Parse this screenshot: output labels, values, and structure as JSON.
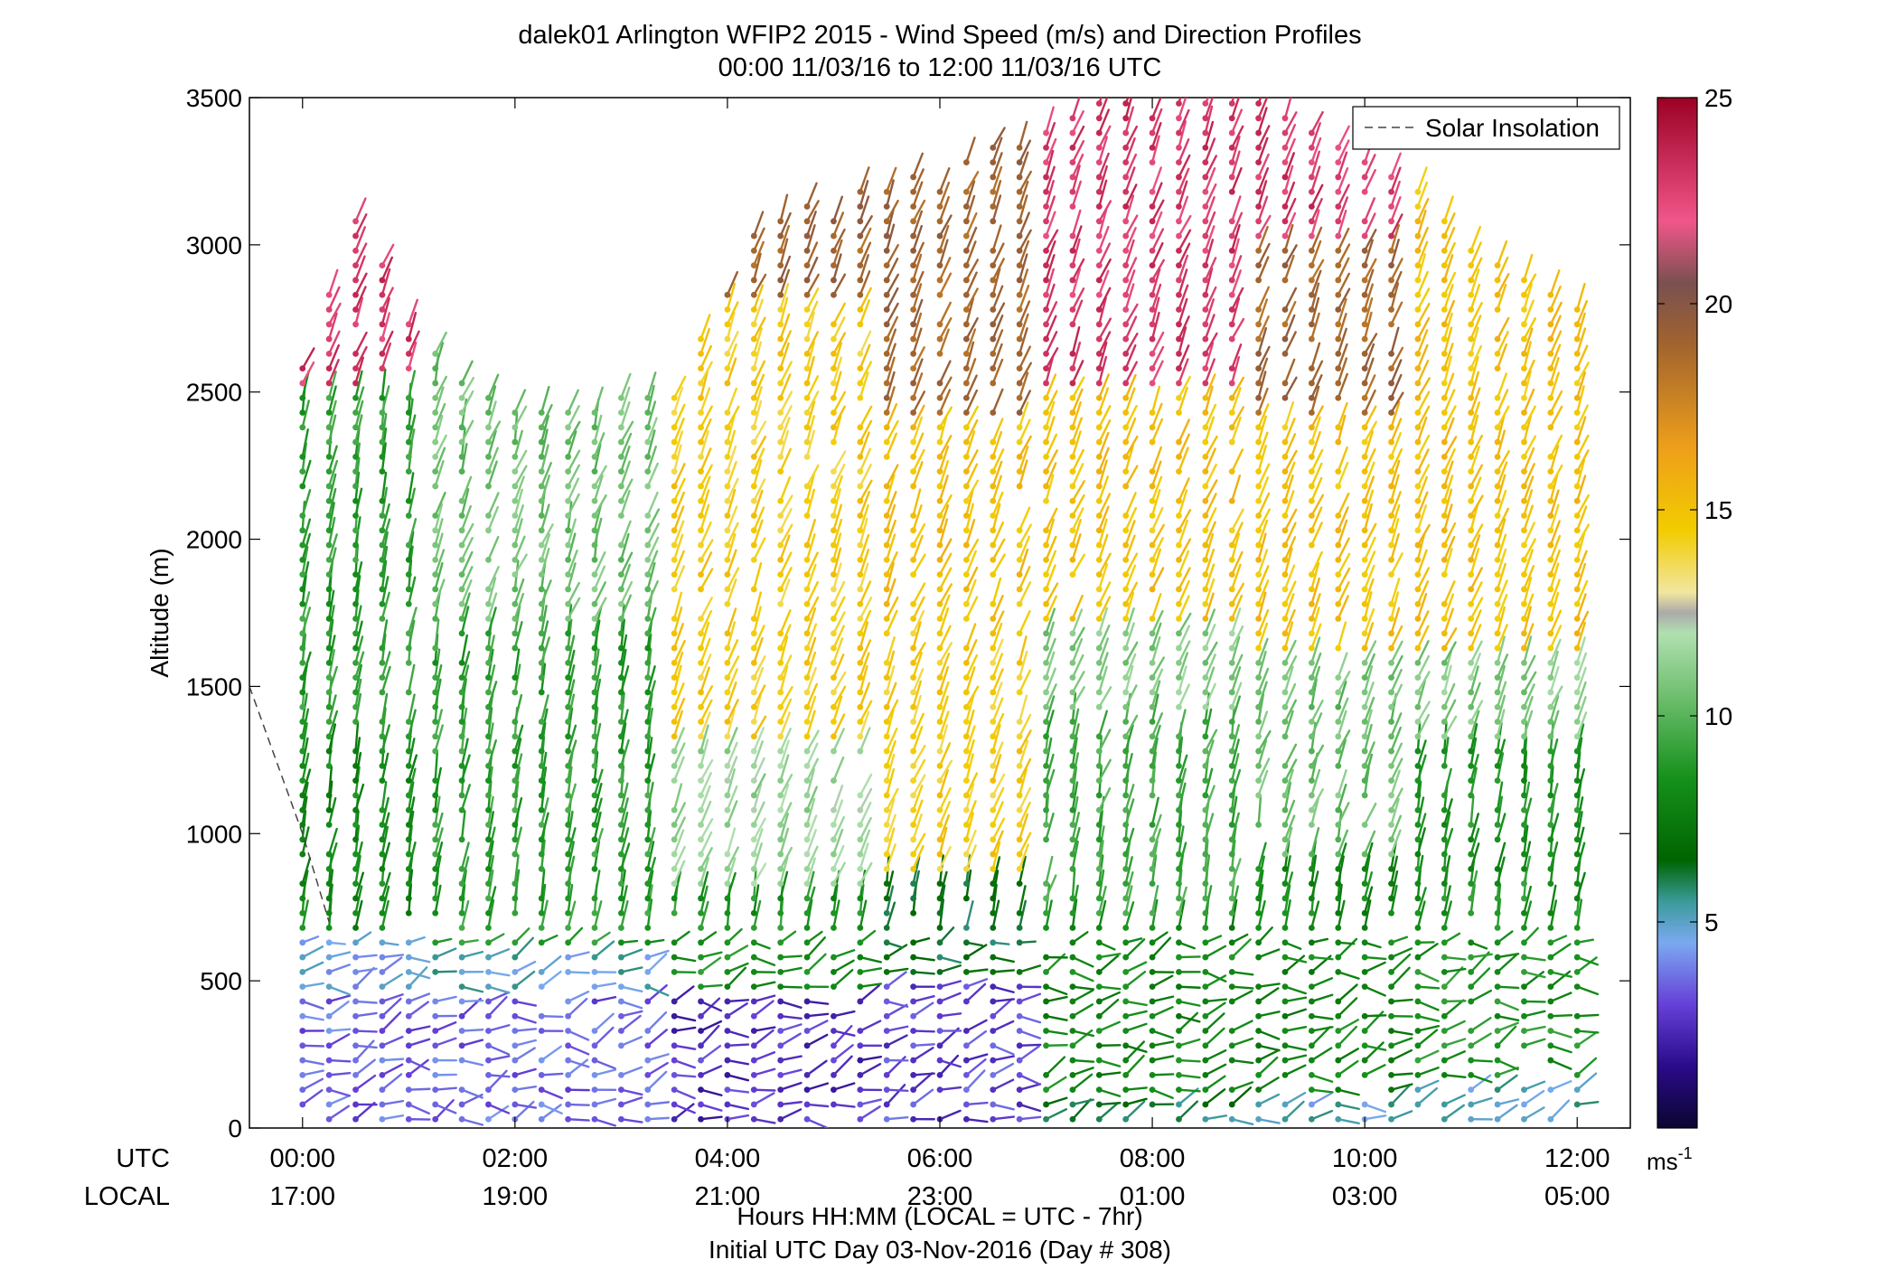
{
  "chart_data": {
    "type": "wind_barb_profile",
    "title": "dalek01 Arlington WFIP2 2015 - Wind Speed (m/s) and Direction Profiles",
    "subtitle": "00:00 11/03/16 to 12:00 11/03/16  UTC",
    "ylabel": "Altitude (m)",
    "xlabel": "Hours HH:MM  (LOCAL = UTC - 7hr)",
    "xlabel2": "Initial UTC Day 03-Nov-2016 (Day # 308)",
    "row_label_utc": "UTC",
    "row_label_local": "LOCAL",
    "ylim": [
      0,
      3500
    ],
    "xlim_hours": [
      -0.5,
      12.5
    ],
    "yticks": [
      0,
      500,
      1000,
      1500,
      2000,
      2500,
      3000,
      3500
    ],
    "xticks": [
      {
        "hour": 0,
        "utc": "00:00",
        "local": "17:00"
      },
      {
        "hour": 2,
        "utc": "02:00",
        "local": "19:00"
      },
      {
        "hour": 4,
        "utc": "04:00",
        "local": "21:00"
      },
      {
        "hour": 6,
        "utc": "06:00",
        "local": "23:00"
      },
      {
        "hour": 8,
        "utc": "08:00",
        "local": "01:00"
      },
      {
        "hour": 10,
        "utc": "10:00",
        "local": "03:00"
      },
      {
        "hour": 12,
        "utc": "12:00",
        "local": "05:00"
      }
    ],
    "legend": {
      "label": "Solar Insolation",
      "position": "top-right"
    },
    "colorbar": {
      "min": 0,
      "max": 25,
      "ticks": [
        5,
        10,
        15,
        20,
        25
      ],
      "unit_label": "ms",
      "unit_exp": "-1"
    },
    "solar_insolation_line": [
      [
        -0.5,
        1500
      ],
      [
        0.0,
        1000
      ],
      [
        0.25,
        700
      ]
    ],
    "profile_hours_start": 0,
    "profile_hours_end": 12,
    "profile_interval_hours": 0.25,
    "gate_height_m": 50,
    "speed_regimes": [
      {
        "hours": [
          0,
          1.2
        ],
        "layers": [
          {
            "top": 450,
            "speed": 3.5
          },
          {
            "top": 650,
            "speed": 4.5
          },
          {
            "top": 1300,
            "speed": 8
          },
          {
            "top": 2500,
            "speed": 9
          },
          {
            "top": 3100,
            "speed": 23
          }
        ]
      },
      {
        "hours": [
          1.2,
          3.5
        ],
        "layers": [
          {
            "top": 450,
            "speed": 3.5
          },
          {
            "top": 600,
            "speed": 5
          },
          {
            "top": 1700,
            "speed": 9
          },
          {
            "top": 2600,
            "speed": 10.5
          }
        ]
      },
      {
        "hours": [
          3.5,
          5.5
        ],
        "layers": [
          {
            "top": 450,
            "speed": 2.5
          },
          {
            "top": 800,
            "speed": 8.5
          },
          {
            "top": 1300,
            "speed": 11.5
          },
          {
            "top": 2800,
            "speed": 14.5
          },
          {
            "top": 3100,
            "speed": 19
          }
        ]
      },
      {
        "hours": [
          5.5,
          7
        ],
        "layers": [
          {
            "top": 500,
            "speed": 3
          },
          {
            "top": 850,
            "speed": 6.5
          },
          {
            "top": 1700,
            "speed": 14.5
          },
          {
            "top": 2400,
            "speed": 15
          },
          {
            "top": 3300,
            "speed": 19
          }
        ]
      },
      {
        "hours": [
          7,
          9
        ],
        "layers": [
          {
            "top": 120,
            "speed": 6
          },
          {
            "top": 700,
            "speed": 8
          },
          {
            "top": 1400,
            "speed": 9.5
          },
          {
            "top": 1700,
            "speed": 11
          },
          {
            "top": 2500,
            "speed": 15
          },
          {
            "top": 3500,
            "speed": 23
          }
        ]
      },
      {
        "hours": [
          9,
          10.5
        ],
        "layers": [
          {
            "top": 120,
            "speed": 5
          },
          {
            "top": 900,
            "speed": 8
          },
          {
            "top": 1600,
            "speed": 10.5
          },
          {
            "top": 2400,
            "speed": 15
          },
          {
            "top": 3000,
            "speed": 19
          },
          {
            "top": 3500,
            "speed": 23
          }
        ]
      },
      {
        "hours": [
          10.5,
          12
        ],
        "layers": [
          {
            "top": 150,
            "speed": 5
          },
          {
            "top": 1300,
            "speed": 8.5
          },
          {
            "top": 1600,
            "speed": 11
          },
          {
            "top": 2900,
            "speed": 15
          }
        ]
      }
    ],
    "data_tops_m": [
      [
        0,
        2600
      ],
      [
        0.5,
        3100
      ],
      [
        1.2,
        2650
      ],
      [
        2,
        2450
      ],
      [
        3.5,
        2500
      ],
      [
        4.3,
        3100
      ],
      [
        5.2,
        3180
      ],
      [
        6.2,
        3300
      ],
      [
        7.5,
        3480
      ],
      [
        9,
        3480
      ],
      [
        10.5,
        3200
      ],
      [
        11,
        3000
      ],
      [
        12,
        2800
      ]
    ]
  }
}
